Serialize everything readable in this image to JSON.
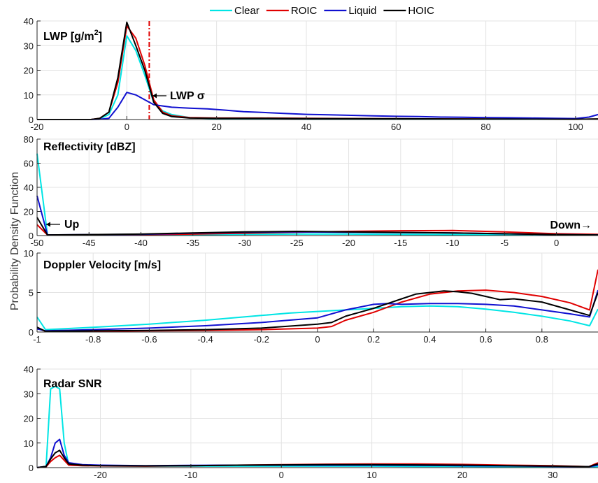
{
  "figure": {
    "ylabel": "Probability Density Function",
    "legend": [
      {
        "name": "Clear",
        "color": "#00e5e5"
      },
      {
        "name": "ROIC",
        "color": "#e00000"
      },
      {
        "name": "Liquid",
        "color": "#1010d0"
      },
      {
        "name": "HOIC",
        "color": "#000000"
      }
    ]
  },
  "chart_data": [
    {
      "type": "line",
      "title": "LWP [g/m2]",
      "title_main": "LWP [g/m",
      "title_sup": "2",
      "title_end": "]",
      "xlim": [
        -20,
        105
      ],
      "ylim": [
        0,
        40
      ],
      "xticks": [
        -20,
        0,
        20,
        40,
        60,
        80,
        100
      ],
      "yticks": [
        0,
        10,
        20,
        30,
        40
      ],
      "grid": true,
      "vline": {
        "x": 5,
        "color": "#e00000",
        "label": "LWP σ"
      },
      "annotations": [
        {
          "text": "LWP σ",
          "arrow": "←"
        }
      ],
      "series": [
        {
          "name": "Clear",
          "x": [
            -20,
            -8,
            -6,
            -4,
            -2,
            0,
            2,
            4,
            6,
            8,
            10,
            14,
            20,
            30,
            40,
            60,
            80,
            100,
            105
          ],
          "y": [
            0,
            0,
            0.3,
            2,
            10,
            34,
            28,
            18,
            7,
            3.5,
            2,
            0.8,
            0.3,
            0.2,
            0.1,
            0.1,
            0.1,
            0.1,
            0.2
          ]
        },
        {
          "name": "ROIC",
          "x": [
            -20,
            -8,
            -6,
            -4,
            -2,
            0,
            2,
            4,
            6,
            8,
            10,
            14,
            20,
            30,
            40,
            60,
            80,
            100,
            105
          ],
          "y": [
            0,
            0,
            0.5,
            3,
            15,
            38,
            33,
            22,
            8,
            3,
            1.5,
            0.8,
            0.6,
            0.6,
            0.5,
            0.3,
            0.2,
            0.1,
            0.2
          ]
        },
        {
          "name": "Liquid",
          "x": [
            -20,
            -8,
            -6,
            -4,
            -2,
            0,
            2,
            4,
            6,
            8,
            10,
            14,
            18,
            22,
            26,
            30,
            35,
            40,
            45,
            50,
            55,
            60,
            65,
            70,
            75,
            80,
            85,
            90,
            95,
            100,
            103,
            105
          ],
          "y": [
            0,
            0,
            0.1,
            0.5,
            5,
            11,
            10,
            8,
            6,
            5.5,
            5,
            4.6,
            4.3,
            3.8,
            3.2,
            2.9,
            2.5,
            2.1,
            1.9,
            1.7,
            1.5,
            1.3,
            1.2,
            1,
            0.9,
            0.8,
            0.7,
            0.6,
            0.5,
            0.4,
            1,
            2
          ]
        },
        {
          "name": "HOIC",
          "x": [
            -20,
            -8,
            -6,
            -4,
            -2,
            0,
            2,
            4,
            6,
            8,
            10,
            14,
            20,
            30,
            40,
            60,
            80,
            100,
            105
          ],
          "y": [
            0,
            0,
            0.5,
            3,
            17,
            39.5,
            30,
            20,
            7,
            2.5,
            1.2,
            0.6,
            0.5,
            0.5,
            0.4,
            0.3,
            0.2,
            0.1,
            0.2
          ]
        }
      ]
    },
    {
      "type": "line",
      "title": "Reflectivity [dBZ]",
      "xlim": [
        -50,
        4
      ],
      "ylim": [
        0,
        80
      ],
      "xticks": [
        -50,
        -45,
        -40,
        -35,
        -30,
        -25,
        -20,
        -15,
        -10,
        -5,
        0
      ],
      "yticks": [
        0,
        20,
        40,
        60,
        80
      ],
      "grid": true,
      "annotations": [
        {
          "text": "Up",
          "arrow": "←"
        },
        {
          "text": "Down→"
        }
      ],
      "series": [
        {
          "name": "Clear",
          "x": [
            -50,
            -49,
            -45,
            -40,
            -35,
            -30,
            -25,
            -20,
            -15,
            -10,
            -5,
            0,
            4
          ],
          "y": [
            68,
            0.5,
            0.5,
            0.6,
            0.8,
            1,
            1.2,
            1.2,
            1,
            0.8,
            0.6,
            0.4,
            0.5
          ]
        },
        {
          "name": "ROIC",
          "x": [
            -50,
            -49,
            -45,
            -40,
            -35,
            -30,
            -25,
            -20,
            -15,
            -10,
            -5,
            0,
            4
          ],
          "y": [
            9,
            0.5,
            0.5,
            0.8,
            1.2,
            2,
            2.8,
            3.5,
            4,
            4.2,
            3,
            1.5,
            1
          ]
        },
        {
          "name": "Liquid",
          "x": [
            -50,
            -49,
            -45,
            -40,
            -35,
            -30,
            -25,
            -20,
            -15,
            -10,
            -5,
            0,
            4
          ],
          "y": [
            33,
            0.5,
            0.8,
            1,
            2,
            2.8,
            3,
            2.8,
            2.5,
            2.2,
            1.5,
            0.8,
            0.5
          ]
        },
        {
          "name": "HOIC",
          "x": [
            -50,
            -49,
            -45,
            -40,
            -35,
            -30,
            -25,
            -20,
            -15,
            -10,
            -5,
            0,
            4
          ],
          "y": [
            15,
            0.5,
            0.8,
            1.2,
            2.2,
            3,
            3.5,
            3,
            2.6,
            2.2,
            1.5,
            0.8,
            0.5
          ]
        }
      ]
    },
    {
      "type": "line",
      "title": "Doppler Velocity [m/s]",
      "xlim": [
        -1,
        1
      ],
      "ylim": [
        0,
        10
      ],
      "xticks": [
        -1,
        -0.8,
        -0.6,
        -0.4,
        -0.2,
        0,
        0.2,
        0.4,
        0.6,
        0.8
      ],
      "yticks": [
        0,
        5,
        10
      ],
      "grid": true,
      "series": [
        {
          "name": "Clear",
          "x": [
            -1,
            -0.97,
            -0.8,
            -0.6,
            -0.4,
            -0.2,
            -0.1,
            0,
            0.1,
            0.2,
            0.3,
            0.4,
            0.5,
            0.6,
            0.7,
            0.8,
            0.9,
            0.97,
            1
          ],
          "y": [
            1.9,
            0.3,
            0.6,
            1,
            1.5,
            2.1,
            2.4,
            2.6,
            2.8,
            3,
            3.2,
            3.3,
            3.2,
            2.9,
            2.5,
            2,
            1.4,
            0.8,
            2.9
          ]
        },
        {
          "name": "ROIC",
          "x": [
            -1,
            -0.97,
            -0.8,
            -0.6,
            -0.4,
            -0.2,
            0,
            0.05,
            0.1,
            0.2,
            0.3,
            0.4,
            0.5,
            0.6,
            0.7,
            0.8,
            0.9,
            0.97,
            1
          ],
          "y": [
            0.5,
            0.1,
            0.1,
            0.15,
            0.2,
            0.3,
            0.5,
            0.7,
            1.5,
            2.5,
            3.8,
            4.8,
            5.2,
            5.3,
            5,
            4.5,
            3.7,
            2.8,
            7.9
          ]
        },
        {
          "name": "Liquid",
          "x": [
            -1,
            -0.97,
            -0.8,
            -0.6,
            -0.4,
            -0.2,
            0,
            0.1,
            0.2,
            0.25,
            0.3,
            0.4,
            0.5,
            0.6,
            0.7,
            0.8,
            0.9,
            0.97,
            1
          ],
          "y": [
            0.4,
            0.15,
            0.3,
            0.5,
            0.8,
            1.2,
            1.8,
            2.8,
            3.5,
            3.6,
            3.5,
            3.6,
            3.6,
            3.5,
            3.3,
            2.8,
            2.3,
            1.9,
            5.3
          ]
        },
        {
          "name": "HOIC",
          "x": [
            -1,
            -0.97,
            -0.8,
            -0.6,
            -0.4,
            -0.2,
            0,
            0.05,
            0.1,
            0.2,
            0.3,
            0.35,
            0.4,
            0.45,
            0.5,
            0.55,
            0.6,
            0.65,
            0.7,
            0.8,
            0.9,
            0.97,
            1
          ],
          "y": [
            0.6,
            0.1,
            0.15,
            0.2,
            0.3,
            0.5,
            1,
            1.2,
            2,
            3,
            4.2,
            4.8,
            5,
            5.2,
            5.1,
            4.9,
            4.5,
            4.1,
            4.2,
            3.8,
            2.8,
            2.1,
            5
          ]
        }
      ]
    },
    {
      "type": "line",
      "title": "Radar SNR",
      "xlim": [
        -27,
        35
      ],
      "ylim": [
        0,
        40
      ],
      "xticks": [
        -20,
        -10,
        0,
        10,
        20,
        30
      ],
      "yticks": [
        0,
        10,
        20,
        30,
        40
      ],
      "grid": true,
      "series": [
        {
          "name": "Clear",
          "x": [
            -27,
            -26,
            -25.5,
            -25,
            -24.5,
            -24,
            -23.5,
            -22,
            -20,
            -15,
            -10,
            -5,
            0,
            5,
            10,
            15,
            20,
            25,
            30,
            34,
            35
          ],
          "y": [
            0,
            0.5,
            32,
            33,
            32,
            10,
            1,
            0.8,
            0.7,
            0.6,
            0.6,
            0.6,
            0.6,
            0.6,
            0.6,
            0.5,
            0.5,
            0.4,
            0.3,
            0.3,
            0.5
          ]
        },
        {
          "name": "ROIC",
          "x": [
            -27,
            -26,
            -25.5,
            -25,
            -24.5,
            -24,
            -23.5,
            -22,
            -20,
            -15,
            -10,
            -5,
            0,
            5,
            10,
            15,
            20,
            25,
            30,
            34,
            35
          ],
          "y": [
            0,
            0.3,
            2.5,
            4,
            5,
            3,
            1,
            0.8,
            0.7,
            0.6,
            0.8,
            1,
            1.2,
            1.4,
            1.5,
            1.5,
            1.3,
            1,
            0.8,
            0.4,
            2
          ]
        },
        {
          "name": "Liquid",
          "x": [
            -27,
            -26,
            -25.5,
            -25,
            -24.5,
            -24,
            -23.5,
            -22,
            -20,
            -15,
            -10,
            -5,
            0,
            5,
            10,
            15,
            20,
            25,
            30,
            34,
            35
          ],
          "y": [
            0,
            0.5,
            4,
            10,
            11.5,
            5,
            2,
            1.2,
            1,
            0.8,
            0.9,
            1,
            1,
            1,
            1,
            0.9,
            0.8,
            0.7,
            0.5,
            0.4,
            1
          ]
        },
        {
          "name": "HOIC",
          "x": [
            -27,
            -26,
            -25.5,
            -25,
            -24.5,
            -24,
            -23.5,
            -22,
            -20,
            -15,
            -10,
            -5,
            0,
            5,
            10,
            15,
            20,
            25,
            30,
            34,
            35
          ],
          "y": [
            0,
            0.5,
            3.5,
            6,
            7,
            4,
            1.5,
            1,
            0.8,
            0.7,
            0.8,
            1,
            1.1,
            1.2,
            1.2,
            1.1,
            1,
            0.8,
            0.6,
            0.4,
            1.5
          ]
        }
      ]
    }
  ]
}
